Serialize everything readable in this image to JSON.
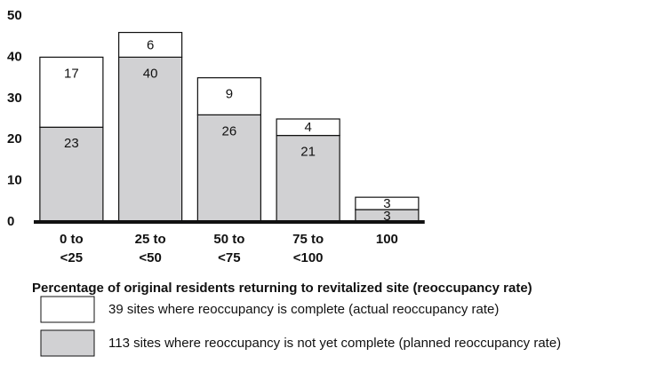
{
  "chart_data": {
    "type": "stacked_bar",
    "xlabel": "Percentage of original residents returning to revitalized site (reoccupancy rate)",
    "categories": [
      "0 to <25",
      "25 to <50",
      "50 to <75",
      "75 to <100",
      "100"
    ],
    "series": [
      {
        "name": "113 sites where reoccupancy is not yet complete (planned reoccupancy rate)",
        "color": "#d1d1d3",
        "values": [
          23,
          40,
          26,
          21,
          3
        ]
      },
      {
        "name": "39 sites where reoccupancy is complete (actual reoccupancy rate)",
        "color": "#ffffff",
        "values": [
          17,
          6,
          9,
          4,
          3
        ]
      }
    ],
    "ylim": [
      0,
      50
    ],
    "yticks": [
      0,
      10,
      20,
      30,
      40,
      50
    ],
    "grid": false,
    "data_labels": true
  }
}
